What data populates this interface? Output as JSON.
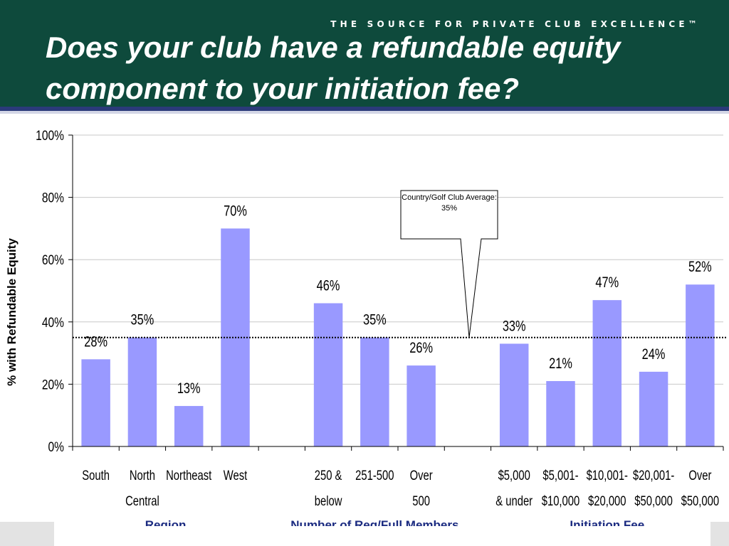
{
  "header": {
    "title": "Does your club have a refundable equity component to your initiation fee?",
    "tagline": "THE SOURCE FOR PRIVATE CLUB EXCELLENCE™"
  },
  "colors": {
    "header_bg": "#0e4a3c",
    "bar": "#9999ff",
    "band_blue": "#2b3a7a"
  },
  "chart_data": {
    "type": "bar",
    "title": "",
    "ylabel": "% with Refundable Equity",
    "ylim": [
      0,
      100
    ],
    "yticks": [
      "0%",
      "20%",
      "40%",
      "60%",
      "80%",
      "100%"
    ],
    "grid": true,
    "categories": [
      [
        "South"
      ],
      [
        "North",
        "Central"
      ],
      [
        "Northeast"
      ],
      [
        "West"
      ],
      [],
      [
        "250 &",
        "below"
      ],
      [
        "251-500"
      ],
      [
        "Over",
        "500"
      ],
      [],
      [
        "$5,000",
        "& under"
      ],
      [
        "$5,001-",
        "$10,000"
      ],
      [
        "$10,001-",
        "$20,000"
      ],
      [
        "$20,001-",
        "$50,000"
      ],
      [
        "Over",
        "$50,000"
      ]
    ],
    "values": [
      28,
      35,
      13,
      70,
      null,
      46,
      35,
      26,
      null,
      33,
      21,
      47,
      24,
      52
    ],
    "value_labels": [
      "28%",
      "35%",
      "13%",
      "70%",
      "",
      "46%",
      "35%",
      "26%",
      "",
      "33%",
      "21%",
      "47%",
      "24%",
      "52%"
    ],
    "groups": [
      {
        "label": "Region",
        "from": 0,
        "to": 3
      },
      {
        "label": "Number of Reg/Full Members",
        "from": 5,
        "to": 7
      },
      {
        "label": "Initiation Fee",
        "from": 9,
        "to": 13
      }
    ],
    "reference_line": {
      "value": 35,
      "callout_line1": "Country/Golf Club Average:",
      "callout_line2": "35%"
    }
  }
}
